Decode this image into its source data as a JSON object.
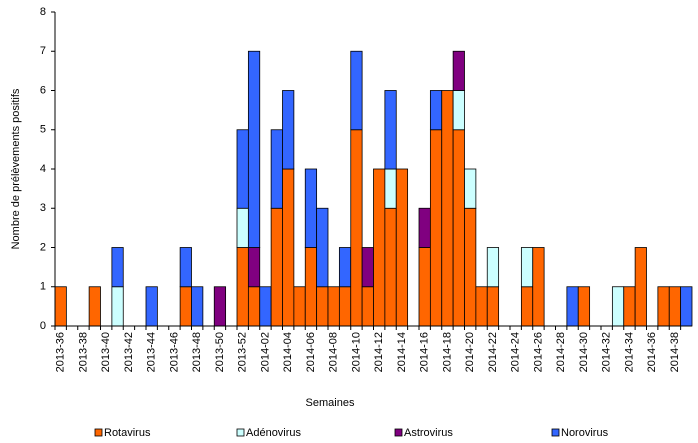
{
  "chart_data": {
    "type": "stacked_bar",
    "x_label": "Semaines",
    "y_label": "Nombre de prélèvements positifs",
    "categories": [
      "2013-36",
      null,
      "2013-38",
      null,
      "2013-40",
      null,
      "2013-42",
      null,
      "2013-44",
      null,
      "2013-46",
      null,
      "2013-48",
      null,
      "2013-50",
      null,
      "2013-52",
      null,
      "2014-02",
      null,
      "2014-04",
      null,
      "2014-06",
      null,
      "2014-08",
      null,
      "2014-10",
      null,
      "2014-12",
      null,
      "2014-14",
      null,
      "2014-16",
      null,
      "2014-18",
      null,
      "2014-20",
      null,
      "2014-22",
      null,
      "2014-24",
      null,
      "2014-26",
      null,
      "2014-28",
      null,
      "2014-30",
      null,
      "2014-32",
      null,
      "2014-34",
      null,
      "2014-36",
      null,
      "2014-38",
      null
    ],
    "series": [
      {
        "name": "Rotavirus",
        "color": "#ff6600",
        "values": [
          1,
          0,
          0,
          1,
          0,
          0,
          0,
          0,
          0,
          0,
          0,
          1,
          0,
          0,
          0,
          0,
          2,
          1,
          0,
          3,
          4,
          1,
          2,
          1,
          1,
          1,
          5,
          1,
          4,
          3,
          4,
          0,
          2,
          5,
          6,
          5,
          3,
          1,
          1,
          0,
          0,
          1,
          2,
          0,
          0,
          0,
          1,
          0,
          0,
          0,
          1,
          2,
          0,
          1,
          1,
          0
        ]
      },
      {
        "name": "Adénovirus",
        "color": "#ccffff",
        "values": [
          0,
          0,
          0,
          0,
          0,
          1,
          0,
          0,
          0,
          0,
          0,
          0,
          0,
          0,
          0,
          0,
          1,
          0,
          0,
          0,
          0,
          0,
          0,
          0,
          0,
          0,
          0,
          0,
          0,
          1,
          0,
          0,
          0,
          0,
          0,
          1,
          1,
          0,
          1,
          0,
          0,
          1,
          0,
          0,
          0,
          0,
          0,
          0,
          0,
          1,
          0,
          0,
          0,
          0,
          0,
          0
        ]
      },
      {
        "name": "Astrovirus",
        "color": "#800080",
        "values": [
          0,
          0,
          0,
          0,
          0,
          0,
          0,
          0,
          0,
          0,
          0,
          0,
          0,
          0,
          1,
          0,
          0,
          1,
          0,
          0,
          0,
          0,
          0,
          0,
          0,
          0,
          0,
          1,
          0,
          0,
          0,
          0,
          1,
          0,
          0,
          1,
          0,
          0,
          0,
          0,
          0,
          0,
          0,
          0,
          0,
          0,
          0,
          0,
          0,
          0,
          0,
          0,
          0,
          0,
          0,
          0
        ]
      },
      {
        "name": "Norovirus",
        "color": "#3366ff",
        "values": [
          0,
          0,
          0,
          0,
          0,
          1,
          0,
          0,
          1,
          0,
          0,
          1,
          1,
          0,
          0,
          0,
          2,
          5,
          1,
          2,
          2,
          0,
          2,
          2,
          0,
          1,
          2,
          0,
          0,
          2,
          0,
          0,
          0,
          1,
          0,
          0,
          0,
          0,
          0,
          0,
          0,
          0,
          0,
          0,
          0,
          1,
          0,
          0,
          0,
          0,
          0,
          0,
          0,
          0,
          0,
          1
        ]
      }
    ],
    "ylim": [
      0,
      8
    ],
    "yticks": [
      0,
      1,
      2,
      3,
      4,
      5,
      6,
      7,
      8
    ]
  }
}
